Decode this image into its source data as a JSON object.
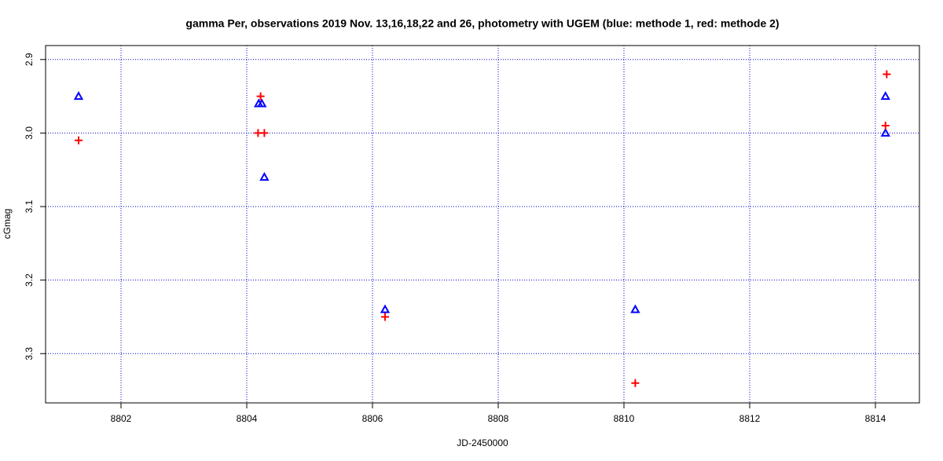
{
  "chart_data": {
    "type": "scatter",
    "title": "gamma Per, observations 2019 Nov. 13,16,18,22 and 26, photometry with UGEM (blue: methode 1, red: methode 2)",
    "x_label": "JD-2450000",
    "y_label": "cGmag",
    "xlim": [
      8800.8,
      8814.7
    ],
    "ylim": [
      3.367,
      2.881
    ],
    "xticks": [
      8802,
      8804,
      8806,
      8808,
      8810,
      8812,
      8814
    ],
    "yticks": [
      2.9,
      {
        "value": 3,
        "label": "3.0"
      },
      3.1,
      3.2,
      3.3
    ],
    "grid": true,
    "grid_color": "#0000cc",
    "series": [
      {
        "color": "#0000ff",
        "marker": "triangle",
        "x": [
          8801.325,
          8804.19,
          8804.24,
          8804.28,
          8806.2,
          8810.18,
          8814.16,
          8814.16
        ],
        "values": [
          2.95,
          2.96,
          2.96,
          3.06,
          3.24,
          3.24,
          2.95,
          3.0
        ]
      },
      {
        "color": "#ff0000",
        "marker": "plus",
        "x": [
          8801.325,
          8804.22,
          8804.18,
          8804.28,
          8806.2,
          8810.18,
          8814.18,
          8814.16
        ],
        "values": [
          3.01,
          2.95,
          3.0,
          3.0,
          3.25,
          3.34,
          2.92,
          2.99
        ]
      }
    ]
  }
}
